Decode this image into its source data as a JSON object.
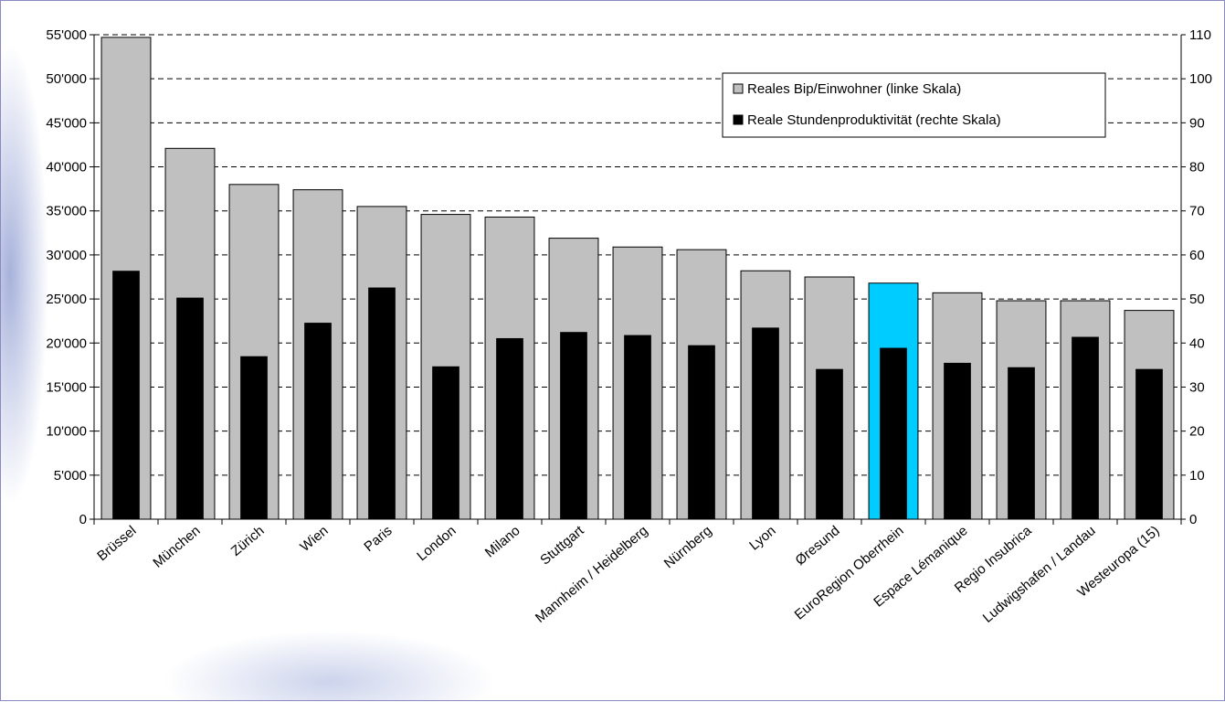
{
  "chart_data": {
    "type": "bar",
    "categories": [
      "Brüssel",
      "München",
      "Zürich",
      "Wien",
      "Paris",
      "London",
      "Milano",
      "Stuttgart",
      "Mannheim / Heidelberg",
      "Nürnberg",
      "Lyon",
      "Øresund",
      "EuroRegion Oberrhein",
      "Espace Lémanique",
      "Regio Insubrica",
      "Ludwigshafen / Landau",
      "Westeuropa (15)"
    ],
    "series": [
      {
        "name": "Reales Bip/Einwohner (linke Skala)",
        "axis": "left",
        "color": "#c0c0c0",
        "highlight": {
          "category": "EuroRegion Oberrhein",
          "color": "#00ccff"
        },
        "values": [
          54700,
          42100,
          38000,
          37400,
          35500,
          34600,
          34300,
          31900,
          30900,
          30600,
          28200,
          27500,
          26800,
          25700,
          24800,
          24800,
          23700
        ]
      },
      {
        "name": "Reale Stundenproduktivität (rechte Skala)",
        "axis": "right",
        "color": "#000000",
        "values": [
          56.3,
          50.2,
          36.9,
          44.5,
          52.5,
          34.6,
          41.0,
          42.4,
          41.7,
          39.4,
          43.4,
          34.0,
          38.8,
          35.4,
          34.4,
          41.3,
          34.0
        ]
      }
    ],
    "y_left": {
      "min": 0,
      "max": 55000,
      "step": 5000,
      "tick_labels": [
        "0",
        "5'000",
        "10'000",
        "15'000",
        "20'000",
        "25'000",
        "30'000",
        "35'000",
        "40'000",
        "45'000",
        "50'000",
        "55'000"
      ]
    },
    "y_right": {
      "min": 0,
      "max": 110,
      "step": 10,
      "tick_labels": [
        "0",
        "10",
        "20",
        "30",
        "40",
        "50",
        "60",
        "70",
        "80",
        "90",
        "100",
        "110"
      ]
    },
    "gridlines": "dashed",
    "legend_position": "top-right"
  }
}
